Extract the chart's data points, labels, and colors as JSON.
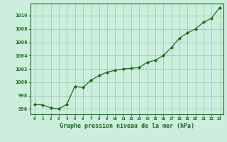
{
  "x": [
    0,
    1,
    2,
    3,
    4,
    5,
    6,
    7,
    8,
    9,
    10,
    11,
    12,
    13,
    14,
    15,
    16,
    17,
    18,
    19,
    20,
    21,
    22,
    23
  ],
  "y": [
    996.7,
    996.6,
    996.2,
    996.0,
    996.7,
    999.4,
    999.2,
    1000.3,
    1001.0,
    1001.5,
    1001.8,
    1002.0,
    1002.1,
    1002.2,
    1003.0,
    1003.3,
    1004.0,
    1005.2,
    1006.6,
    1007.4,
    1008.0,
    1009.0,
    1009.6,
    1011.2
  ],
  "line_color": "#1a6e1a",
  "marker_color": "#1a6e1a",
  "bg_color": "#cceedd",
  "grid_color": "#99ccbb",
  "xlabel": "Graphe pression niveau de la mer (hPa)",
  "ylabel_ticks": [
    996,
    998,
    1000,
    1002,
    1004,
    1006,
    1008,
    1010
  ],
  "xlim": [
    -0.5,
    23.5
  ],
  "ylim": [
    995.2,
    1011.8
  ],
  "xtick_labels": [
    "0",
    "1",
    "2",
    "3",
    "4",
    "5",
    "6",
    "7",
    "8",
    "9",
    "10",
    "11",
    "12",
    "13",
    "14",
    "15",
    "16",
    "17",
    "18",
    "19",
    "20",
    "21",
    "22",
    "23"
  ]
}
